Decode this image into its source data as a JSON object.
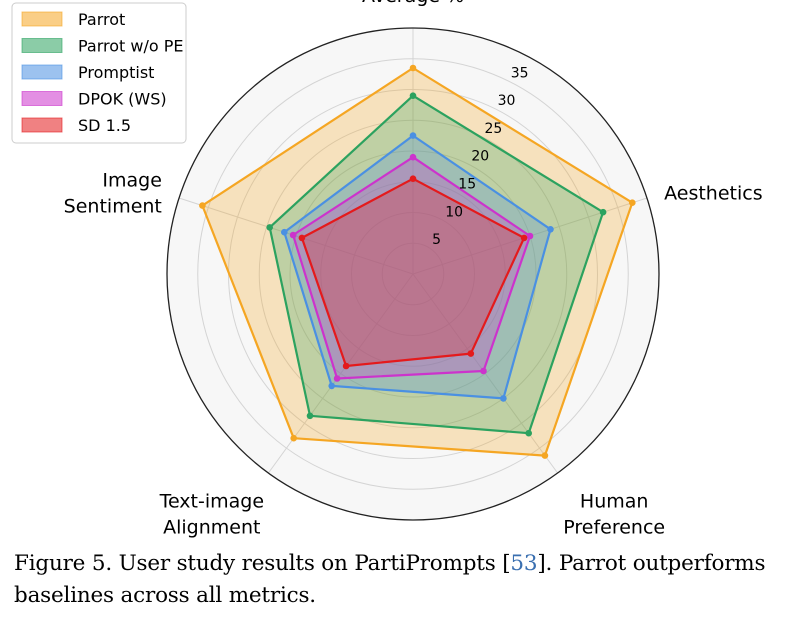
{
  "chart_data": {
    "type": "radar",
    "axes": [
      "Average %",
      "Aesthetics",
      "Human Preference",
      "Text-image Alignment",
      "Image Sentiment"
    ],
    "axis_label_lines": [
      [
        "Average %"
      ],
      [
        "Aesthetics"
      ],
      [
        "Human",
        "Preference"
      ],
      [
        "Text-image",
        "Alignment"
      ],
      [
        "Image",
        "Sentiment"
      ]
    ],
    "r_ticks": [
      5,
      10,
      15,
      20,
      25,
      30,
      35
    ],
    "r_tick_labels": [
      "5",
      "10",
      "15",
      "20",
      "25",
      "30",
      "35"
    ],
    "rlim": [
      0,
      40
    ],
    "legend_position": "top-left",
    "series": [
      {
        "name": "Parrot",
        "color": "#f5a623",
        "values": [
          33.5,
          37.5,
          36.5,
          33.0,
          36.0
        ]
      },
      {
        "name": "Parrot w/o PE",
        "color": "#2ca25f",
        "values": [
          29.0,
          32.5,
          32.0,
          28.5,
          24.5
        ]
      },
      {
        "name": "Promptist",
        "color": "#4a90e2",
        "values": [
          22.5,
          23.5,
          25.0,
          22.5,
          22.0
        ]
      },
      {
        "name": "DPOK (WS)",
        "color": "#cc33cc",
        "values": [
          19.0,
          20.0,
          19.5,
          21.0,
          20.5
        ]
      },
      {
        "name": "SD 1.5",
        "color": "#e41a1c",
        "values": [
          15.5,
          19.0,
          16.0,
          18.5,
          19.0
        ]
      }
    ]
  },
  "caption": {
    "prefix": "Figure 5.  User study results on PartiPrompts [",
    "ref": "53",
    "suffix": "].  Parrot outperforms baselines across all metrics."
  }
}
